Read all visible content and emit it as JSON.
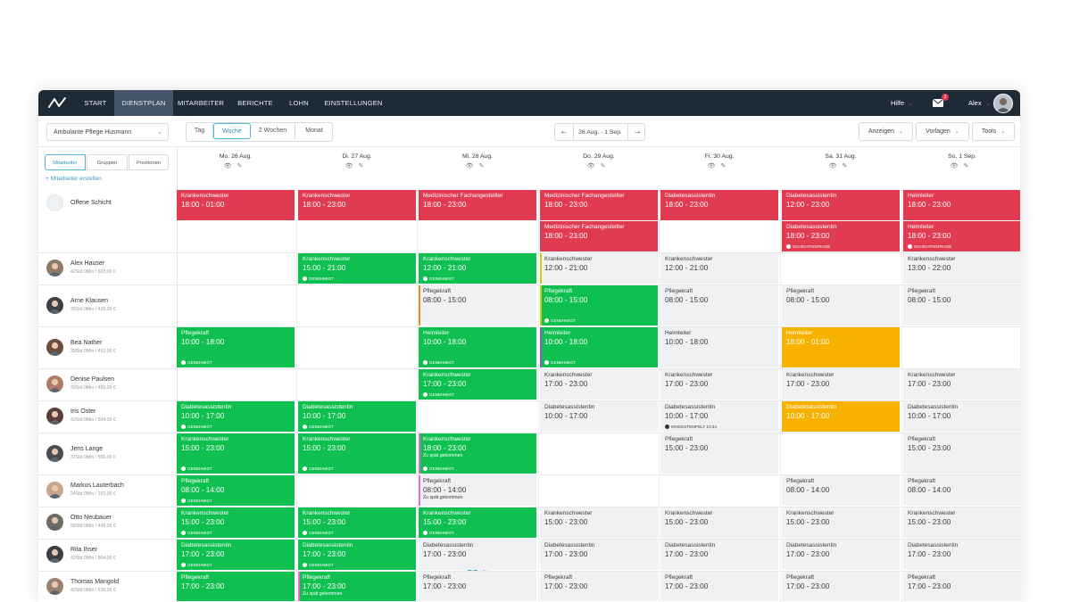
{
  "nav": {
    "items": [
      "START",
      "DIENSTPLAN",
      "MITARBEITER",
      "BERICHTE",
      "LOHN",
      "EINSTELLUNGEN"
    ],
    "active": "DIENSTPLAN",
    "help": "Hilfe",
    "mail_badge": "2",
    "user": "Alex"
  },
  "toolbar": {
    "location": "Ambulante Pflege Husmann",
    "views": [
      "Tag",
      "Woche",
      "2 Wochen",
      "Monat"
    ],
    "active_view": "Woche",
    "range": "26 Aug. - 1 Sep.",
    "show": "Anzeigen",
    "templates": "Vorlagen",
    "tools": "Tools"
  },
  "left": {
    "tabs": [
      "Mitarbeiter",
      "Gruppen",
      "Positionen"
    ],
    "active_tab": "Mitarbeiter",
    "add": "+ Mitarbeiter erstellen"
  },
  "days": [
    {
      "label": "Mo. 26 Aug."
    },
    {
      "label": "Di. 27 Aug."
    },
    {
      "label": "Mi. 28 Aug."
    },
    {
      "label": "Do. 29 Aug."
    },
    {
      "label": "Fr. 30 Aug."
    },
    {
      "label": "Sa. 31 Aug."
    },
    {
      "label": "So. 1 Sep."
    }
  ],
  "rows": [
    {
      "name": "Offene Schicht",
      "stats": "",
      "open": true
    },
    {
      "name": "Alex Hauser",
      "stats": "42Std 0Min / 603,00 €"
    },
    {
      "name": "Arne Klausen",
      "stats": "35Std 0Min / 420,00 €"
    },
    {
      "name": "Bea Nather",
      "stats": "39Std 0Min / 492,00 €"
    },
    {
      "name": "Denise Paulsen",
      "stats": "30Std 0Min / 450,00 €"
    },
    {
      "name": "Iris Oster",
      "stats": "42Std 0Min / 504,00 €"
    },
    {
      "name": "Jens Lange",
      "stats": "37Std 0Min / 555,00 €"
    },
    {
      "name": "Markus Lauterbach",
      "stats": "24Std 0Min / 192,00 €"
    },
    {
      "name": "Otto Neubauer",
      "stats": "56Std 0Min / 448,00 €"
    },
    {
      "name": "Rita Ihser",
      "stats": "42Std 0Min / 504,00 €"
    },
    {
      "name": "Thomas Mangold",
      "stats": "42Std 0Min / 630,00 €"
    }
  ],
  "labels": {
    "approved": "GENEHMIGT",
    "shift_request": "SCHICHTANFRAGE",
    "clocked_in": "EINGESTEMPELT 10:34",
    "late": "Zu spät gekommen"
  },
  "shifts": [
    {
      "row": 0,
      "day": 0,
      "color": "red",
      "title": "Krankenschwester",
      "time": "18:00 - 01:00"
    },
    {
      "row": 0,
      "day": 1,
      "color": "red",
      "title": "Krankenschwester",
      "time": "18:00 - 23:00"
    },
    {
      "row": 0,
      "day": 2,
      "color": "red",
      "title": "Medizinischer Fachangestellter",
      "time": "18:00 - 23:00"
    },
    {
      "row": 0,
      "day": 3,
      "color": "red",
      "title": "Medizinischer Fachangestellter",
      "time": "18:00 - 23:00"
    },
    {
      "row": 0,
      "day": 3,
      "sub": 1,
      "color": "red",
      "title": "Medizinischer Fachangestellter",
      "time": "18:00 - 23:00"
    },
    {
      "row": 0,
      "day": 4,
      "color": "red",
      "title": "Diabetesassistentin",
      "time": "18:00 - 23:00"
    },
    {
      "row": 0,
      "day": 5,
      "color": "red",
      "title": "Diabetesassistentin",
      "time": "12:00 - 23:00"
    },
    {
      "row": 0,
      "day": 5,
      "sub": 1,
      "color": "red",
      "title": "Diabetesassistentin",
      "time": "18:00 - 23:00",
      "badge": "shift_request"
    },
    {
      "row": 0,
      "day": 6,
      "color": "red",
      "title": "Heimleiter",
      "time": "18:00 - 23:00"
    },
    {
      "row": 0,
      "day": 6,
      "sub": 1,
      "color": "red",
      "title": "Heimleiter",
      "time": "18:00 - 23:00",
      "badge": "shift_request"
    },
    {
      "row": 1,
      "day": 1,
      "color": "green",
      "title": "Krankenschwester",
      "time": "15:00 - 21:00",
      "badge": "approved"
    },
    {
      "row": 1,
      "day": 2,
      "color": "green",
      "title": "Krankenschwester",
      "time": "12:00 - 21:00",
      "badge": "approved"
    },
    {
      "row": 1,
      "day": 3,
      "color": "gray",
      "title": "Krankenschwester",
      "time": "12:00 - 21:00",
      "edge": "#c9d300"
    },
    {
      "row": 1,
      "day": 4,
      "color": "gray",
      "title": "Krankenschwester",
      "time": "12:00 - 21:00"
    },
    {
      "row": 1,
      "day": 6,
      "color": "gray",
      "title": "Krankenschwester",
      "time": "13:00 - 22:00"
    },
    {
      "row": 2,
      "day": 2,
      "color": "gray",
      "title": "Pflegekraft",
      "time": "08:00 - 15:00",
      "edge": "#f08a24"
    },
    {
      "row": 2,
      "day": 3,
      "color": "green",
      "title": "Pflegekraft",
      "time": "08:00 - 15:00",
      "badge": "approved",
      "edge": "#c9d300"
    },
    {
      "row": 2,
      "day": 4,
      "color": "gray",
      "title": "Pflegekraft",
      "time": "08:00 - 15:00"
    },
    {
      "row": 2,
      "day": 5,
      "color": "gray",
      "title": "Pflegekraft",
      "time": "08:00 - 15:00"
    },
    {
      "row": 2,
      "day": 6,
      "color": "gray",
      "title": "Pflegekraft",
      "time": "08:00 - 15:00"
    },
    {
      "row": 3,
      "day": 0,
      "color": "green",
      "title": "Pflegekraft",
      "time": "10:00 - 18:00",
      "badge": "approved"
    },
    {
      "row": 3,
      "day": 2,
      "color": "green",
      "title": "Heimleiter",
      "time": "10:00 - 18:00",
      "badge": "approved"
    },
    {
      "row": 3,
      "day": 3,
      "color": "green",
      "title": "Heimleiter",
      "time": "10:00 - 18:00",
      "badge": "approved",
      "edge": "#9b59b6"
    },
    {
      "row": 3,
      "day": 4,
      "color": "gray",
      "title": "Heimleiter",
      "time": "10:00 - 18:00"
    },
    {
      "row": 3,
      "day": 5,
      "color": "yellow",
      "title": "Heimleiter",
      "time": "18:00 - 01:00"
    },
    {
      "row": 4,
      "day": 2,
      "color": "green",
      "title": "Krankenschwester",
      "time": "17:00 - 23:00",
      "badge": "approved"
    },
    {
      "row": 4,
      "day": 3,
      "color": "gray",
      "title": "Krankenschwester",
      "time": "17:00 - 23:00"
    },
    {
      "row": 4,
      "day": 4,
      "color": "gray",
      "title": "Krankenschwester",
      "time": "17:00 - 23:00"
    },
    {
      "row": 4,
      "day": 5,
      "color": "gray",
      "title": "Krankenschwester",
      "time": "17:00 - 23:00"
    },
    {
      "row": 4,
      "day": 6,
      "color": "gray",
      "title": "Krankenschwester",
      "time": "17:00 - 23:00"
    },
    {
      "row": 5,
      "day": 0,
      "color": "green",
      "title": "Diabetesassistentin",
      "time": "10:00 - 17:00",
      "badge": "approved"
    },
    {
      "row": 5,
      "day": 1,
      "color": "green",
      "title": "Diabetesassistentin",
      "time": "10:00 - 17:00",
      "badge": "approved"
    },
    {
      "row": 5,
      "day": 3,
      "color": "gray",
      "title": "Diabetesassistentin",
      "time": "10:00 - 17:00"
    },
    {
      "row": 5,
      "day": 4,
      "color": "gray",
      "title": "Diabetesassistentin",
      "time": "10:00 - 17:00",
      "badge": "clocked_in"
    },
    {
      "row": 5,
      "day": 5,
      "color": "yellow",
      "title": "Diabetesassistentin",
      "time": "10:00 - 17:00"
    },
    {
      "row": 5,
      "day": 6,
      "color": "gray",
      "title": "Diabetesassistentin",
      "time": "10:00 - 17:00"
    },
    {
      "row": 6,
      "day": 0,
      "color": "green",
      "title": "Krankenschwester",
      "time": "15:00 - 23:00",
      "badge": "approved"
    },
    {
      "row": 6,
      "day": 1,
      "color": "green",
      "title": "Krankenschwester",
      "time": "15:00 - 23:00",
      "badge": "approved"
    },
    {
      "row": 6,
      "day": 2,
      "color": "green",
      "title": "Krankenschwester",
      "time": "18:00 - 23:00",
      "note": "late",
      "badge": "approved",
      "edge": "#e86fc6"
    },
    {
      "row": 6,
      "day": 4,
      "color": "gray",
      "title": "Pflegekraft",
      "time": "15:00 - 23:00"
    },
    {
      "row": 6,
      "day": 6,
      "color": "gray",
      "title": "Pflegekraft",
      "time": "15:00 - 23:00"
    },
    {
      "row": 7,
      "day": 0,
      "color": "green",
      "title": "Pflegekraft",
      "time": "08:00 - 14:00",
      "badge": "approved"
    },
    {
      "row": 7,
      "day": 2,
      "color": "gray",
      "title": "Pflegekraft",
      "time": "08:00 - 14:00",
      "note": "late",
      "edge": "#e86fc6"
    },
    {
      "row": 7,
      "day": 5,
      "color": "gray",
      "title": "Pflegekraft",
      "time": "08:00 - 14:00"
    },
    {
      "row": 7,
      "day": 6,
      "color": "gray",
      "title": "Pflegekraft",
      "time": "08:00 - 14:00"
    },
    {
      "row": 8,
      "day": 0,
      "color": "green",
      "title": "Krankenschwester",
      "time": "15:00 - 23:00",
      "badge": "approved"
    },
    {
      "row": 8,
      "day": 1,
      "color": "green",
      "title": "Krankenschwester",
      "time": "15:00 - 23:00",
      "badge": "approved"
    },
    {
      "row": 8,
      "day": 2,
      "color": "green",
      "title": "Krankenschwester",
      "time": "15:00 - 23:00",
      "badge": "approved"
    },
    {
      "row": 8,
      "day": 3,
      "color": "gray",
      "title": "Krankenschwester",
      "time": "15:00 - 23:00"
    },
    {
      "row": 8,
      "day": 4,
      "color": "gray",
      "title": "Krankenschwester",
      "time": "15:00 - 23:00"
    },
    {
      "row": 8,
      "day": 5,
      "color": "gray",
      "title": "Krankenschwester",
      "time": "15:00 - 23:00"
    },
    {
      "row": 8,
      "day": 6,
      "color": "gray",
      "title": "Krankenschwester",
      "time": "15:00 - 23:00"
    },
    {
      "row": 9,
      "day": 0,
      "color": "green",
      "title": "Diabetesassistentin",
      "time": "17:00 - 23:00",
      "badge": "approved"
    },
    {
      "row": 9,
      "day": 1,
      "color": "green",
      "title": "Diabetesassistentin",
      "time": "17:00 - 23:00",
      "badge": "approved"
    },
    {
      "row": 9,
      "day": 2,
      "color": "gray",
      "title": "Diabetesassistentin",
      "time": "17:00 - 23:00"
    },
    {
      "row": 9,
      "day": 3,
      "color": "gray",
      "title": "Diabetesassistentin",
      "time": "17:00 - 23:00"
    },
    {
      "row": 9,
      "day": 4,
      "color": "gray",
      "title": "Diabetesassistentin",
      "time": "17:00 - 23:00"
    },
    {
      "row": 9,
      "day": 5,
      "color": "gray",
      "title": "Diabetesassistentin",
      "time": "17:00 - 23:00"
    },
    {
      "row": 9,
      "day": 6,
      "color": "gray",
      "title": "Diabetesassistentin",
      "time": "17:00 - 23:00"
    },
    {
      "row": 10,
      "day": 0,
      "color": "green",
      "title": "Pflegekraft",
      "time": "17:00 - 23:00"
    },
    {
      "row": 10,
      "day": 1,
      "color": "green",
      "title": "Pflegekraft",
      "time": "17:00 - 23:00",
      "note": "late",
      "edge": "#e86fc6"
    },
    {
      "row": 10,
      "day": 2,
      "color": "gray",
      "title": "Pflegekraft",
      "time": "17:00 - 23:00"
    },
    {
      "row": 10,
      "day": 3,
      "color": "gray",
      "title": "Pflegekraft",
      "time": "17:00 - 23:00"
    },
    {
      "row": 10,
      "day": 4,
      "color": "gray",
      "title": "Pflegekraft",
      "time": "17:00 - 23:00"
    },
    {
      "row": 10,
      "day": 5,
      "color": "gray",
      "title": "Pflegekraft",
      "time": "17:00 - 23:00"
    },
    {
      "row": 10,
      "day": 6,
      "color": "gray",
      "title": "Pflegekraft",
      "time": "17:00 - 23:00"
    }
  ],
  "colors": {
    "red": "#e13b52",
    "green": "#0fbf50",
    "gray": "#eff1f3",
    "yellow": "#f7b200",
    "nav": "#1e2b37",
    "accent": "#3d9bc4"
  },
  "icons": {
    "eye": "👁",
    "edit": "✎"
  }
}
